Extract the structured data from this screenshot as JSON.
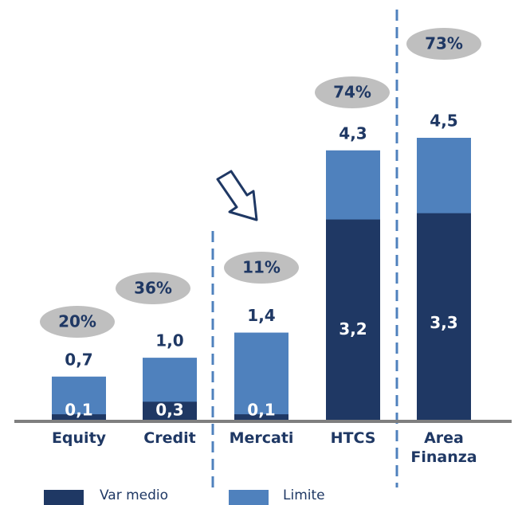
{
  "chart_data": {
    "type": "bar",
    "categories": [
      "Equity",
      "Credit",
      "Mercati",
      "HTCS",
      "Area Finanza"
    ],
    "series": [
      {
        "name": "Var medio",
        "color": "#1f3864",
        "values": [
          0.1,
          0.3,
          0.1,
          3.2,
          3.3
        ],
        "value_labels": [
          "0,1",
          "0,3",
          "0,1",
          "3,2",
          "3,3"
        ]
      },
      {
        "name": "Limite",
        "color": "#4f81bd",
        "values": [
          0.7,
          1.0,
          1.4,
          4.3,
          4.5
        ],
        "value_labels": [
          "0,7",
          "1,0",
          "1,4",
          "4,3",
          "4,5"
        ]
      }
    ],
    "utilization": {
      "values": [
        20,
        36,
        11,
        74,
        73
      ],
      "value_labels": [
        "20%",
        "36%",
        "11%",
        "74%",
        "73%"
      ]
    }
  }
}
